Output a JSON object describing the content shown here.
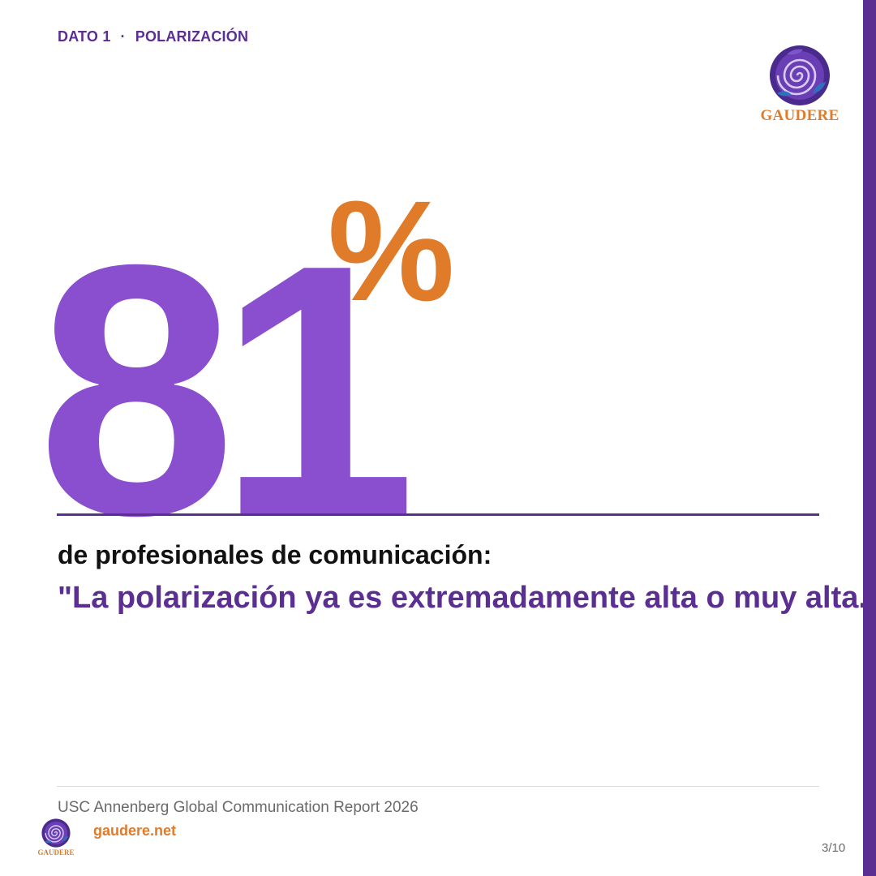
{
  "header": {
    "kicker_label": "DATO 1",
    "kicker_separator": "·",
    "kicker_topic": "POLARIZACIÓN"
  },
  "brand": {
    "name": "GAUDERE",
    "icon": "spiral-emblem-icon"
  },
  "stat": {
    "value": "81",
    "unit": "%"
  },
  "body": {
    "subtitle": "de profesionales de comunicación:",
    "quote": "\"La polarización ya es extremadamente alta o muy alta.\""
  },
  "footer": {
    "source": "USC Annenberg Global Communication Report 2026",
    "website": "gaudere.net",
    "page": "3/10"
  },
  "colors": {
    "primary_purple": "#5b2e91",
    "number_purple": "#8a4fcf",
    "accent_orange": "#e07b2a",
    "text_dark": "#111111",
    "text_muted": "#6a6a6a"
  }
}
